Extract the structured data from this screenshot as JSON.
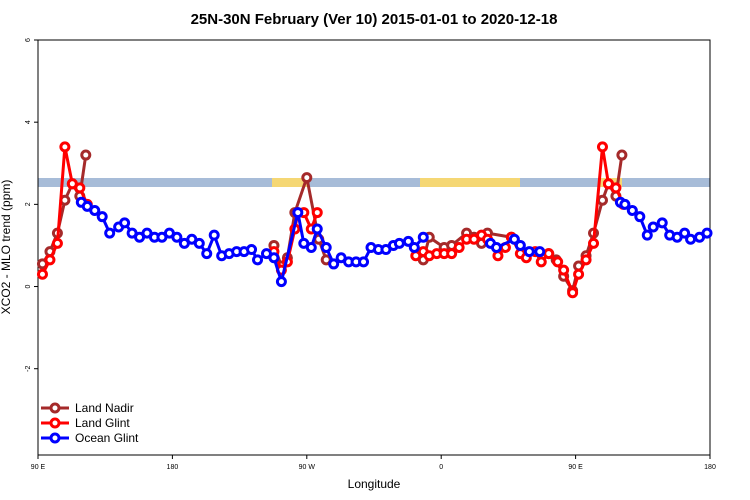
{
  "chart_data": {
    "type": "line",
    "title": "25N-30N February (Ver 10)   2015-01-01 to 2020-12-18",
    "x_label": "Longitude",
    "y_label": "XCO2 - MLO trend (ppm)",
    "xlim": [
      90,
      540
    ],
    "xticks": [
      {
        "value": 90,
        "label": "90 E"
      },
      {
        "value": 180,
        "label": "180"
      },
      {
        "value": 270,
        "label": "90 W"
      },
      {
        "value": 360,
        "label": "0"
      },
      {
        "value": 450,
        "label": "90 E"
      },
      {
        "value": 540,
        "label": "180"
      }
    ],
    "ylim": [
      -4.1,
      6
    ],
    "yticks": [
      -2,
      0,
      2,
      4,
      6
    ],
    "legend": "bottom-left",
    "series": [
      {
        "name": "Land Nadir",
        "color": "#a52a2a",
        "x": [
          93,
          98,
          103,
          108,
          113,
          118,
          122,
          185,
          248,
          253,
          257,
          262,
          270,
          278,
          283,
          315,
          348,
          352,
          362,
          367,
          377,
          382,
          387,
          391,
          407,
          420,
          432,
          437,
          442,
          448,
          452,
          457,
          462,
          468,
          472,
          477,
          481
        ],
        "values": [
          0.55,
          0.85,
          1.3,
          2.1,
          2.5,
          2.2,
          3.2,
          null,
          1.0,
          0.5,
          0.7,
          1.8,
          2.65,
          1.15,
          0.65,
          null,
          0.65,
          1.2,
          0.95,
          1.0,
          1.3,
          1.2,
          1.05,
          1.3,
          1.2,
          null,
          0.8,
          0.65,
          0.25,
          -0.1,
          0.5,
          0.75,
          1.3,
          2.1,
          2.5,
          2.2,
          3.2
        ]
      },
      {
        "name": "Land Glint",
        "color": "#ff0000",
        "x": [
          93,
          98,
          103,
          108,
          113,
          118,
          123,
          185,
          248,
          253,
          257,
          262,
          264,
          268,
          273,
          277,
          315,
          343,
          348,
          352,
          357,
          362,
          367,
          372,
          377,
          382,
          387,
          391,
          398,
          403,
          407,
          413,
          417,
          423,
          427,
          432,
          438,
          442,
          448,
          452,
          457,
          462,
          468,
          472,
          477,
          482
        ],
        "values": [
          0.3,
          0.65,
          1.05,
          3.4,
          2.5,
          2.4,
          2.0,
          null,
          0.85,
          0.4,
          0.6,
          1.4,
          1.8,
          1.8,
          1.4,
          1.8,
          null,
          0.75,
          0.85,
          0.75,
          0.8,
          0.8,
          0.8,
          0.95,
          1.15,
          1.15,
          1.25,
          1.15,
          0.75,
          0.95,
          1.2,
          0.8,
          0.7,
          0.85,
          0.6,
          0.8,
          0.6,
          0.4,
          -0.15,
          0.3,
          0.65,
          1.05,
          3.4,
          2.5,
          2.4,
          2.0
        ]
      },
      {
        "name": "Ocean Glint",
        "color": "#0000ff",
        "x": [
          119,
          123,
          128,
          133,
          138,
          144,
          148,
          153,
          158,
          163,
          168,
          173,
          178,
          183,
          188,
          193,
          198,
          203,
          208,
          213,
          218,
          223,
          228,
          233,
          237,
          243,
          248,
          253,
          264,
          268,
          273,
          277,
          283,
          288,
          293,
          298,
          303,
          308,
          313,
          318,
          323,
          328,
          332,
          338,
          342,
          348,
          370,
          393,
          397,
          409,
          413,
          419,
          426,
          450,
          480,
          483,
          488,
          493,
          498,
          502,
          508,
          513,
          518,
          523,
          527,
          533,
          538
        ],
        "values": [
          2.05,
          1.95,
          1.85,
          1.7,
          1.3,
          1.45,
          1.55,
          1.3,
          1.2,
          1.3,
          1.2,
          1.2,
          1.3,
          1.2,
          1.05,
          1.15,
          1.05,
          0.8,
          1.25,
          0.75,
          0.8,
          0.85,
          0.85,
          0.9,
          0.65,
          0.8,
          0.7,
          0.12,
          1.8,
          1.05,
          0.95,
          1.4,
          0.95,
          0.55,
          0.7,
          0.6,
          0.6,
          0.6,
          0.95,
          0.9,
          0.9,
          1.0,
          1.05,
          1.1,
          0.95,
          1.2,
          null,
          1.05,
          0.95,
          1.15,
          1.0,
          0.85,
          0.85,
          null,
          2.05,
          2.0,
          1.85,
          1.7,
          1.25,
          1.45,
          1.55,
          1.25,
          1.2,
          1.3,
          1.15,
          1.2,
          1.3
        ]
      }
    ]
  }
}
